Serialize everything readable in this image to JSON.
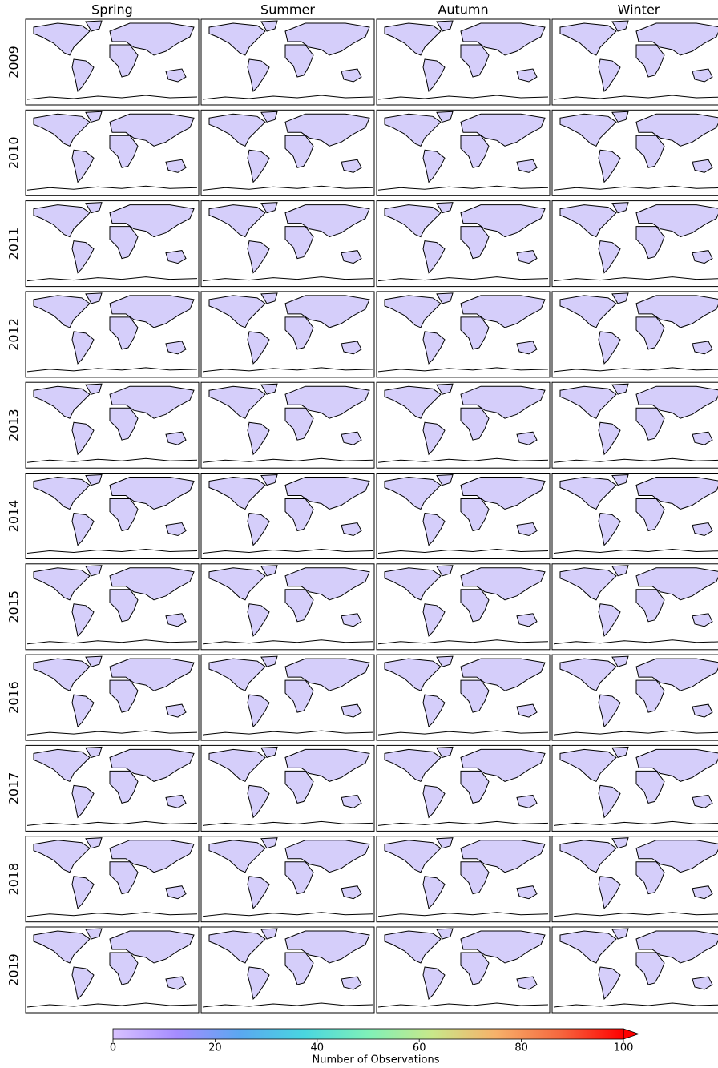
{
  "chart_data": {
    "type": "map-grid",
    "columns": [
      "Spring",
      "Summer",
      "Autumn",
      "Winter"
    ],
    "rows": [
      "2009",
      "2010",
      "2011",
      "2012",
      "2013",
      "2014",
      "2015",
      "2016",
      "2017",
      "2018",
      "2019"
    ],
    "colorbar": {
      "label": "Number of Observations",
      "lim": [
        0,
        100
      ],
      "ticks": [
        0,
        20,
        40,
        60,
        80,
        100
      ],
      "extend": "max",
      "colors": [
        "#d8c2ff",
        "#a58cff",
        "#5aa8f0",
        "#49d6e0",
        "#7ff0b8",
        "#c8e88a",
        "#f7b16a",
        "#f6683f",
        "#ff0000"
      ]
    }
  }
}
